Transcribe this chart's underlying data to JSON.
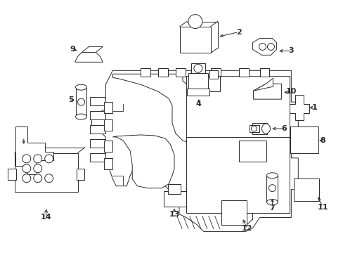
{
  "background_color": "#ffffff",
  "fig_width": 4.89,
  "fig_height": 3.6,
  "dpi": 100,
  "line_color": "#2a2a2a",
  "lw": 0.7
}
